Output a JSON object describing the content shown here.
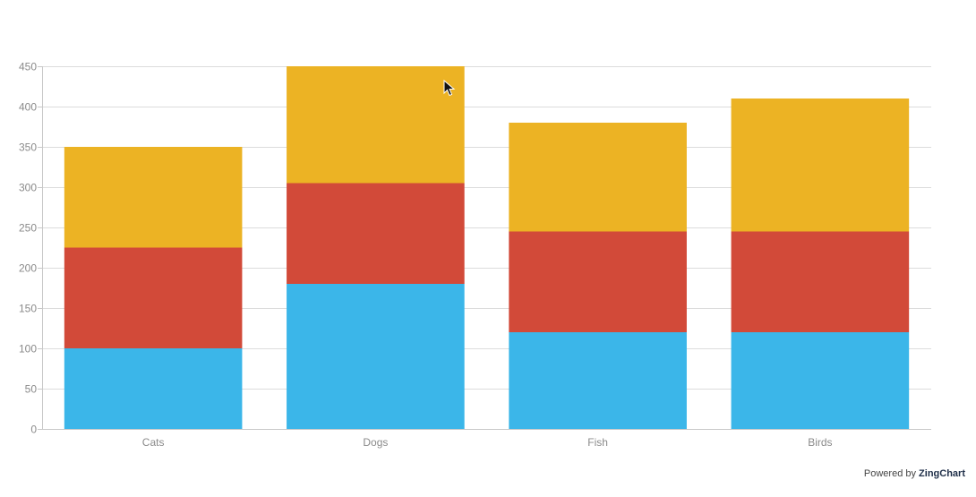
{
  "chart_data": {
    "type": "bar",
    "stacked": true,
    "categories": [
      "Cats",
      "Dogs",
      "Fish",
      "Birds"
    ],
    "series": [
      {
        "values": [
          100,
          180,
          120,
          120
        ],
        "color": "#3bb6e9"
      },
      {
        "values": [
          125,
          125,
          125,
          125
        ],
        "color": "#d24a39"
      },
      {
        "values": [
          125,
          145,
          135,
          165
        ],
        "color": "#ecb324"
      }
    ],
    "ylim": [
      0,
      450
    ],
    "yticks": [
      0,
      50,
      100,
      150,
      200,
      250,
      300,
      350,
      400,
      450
    ],
    "grid": true
  },
  "credit": {
    "prefix": "Powered by",
    "brand": "ZingChart"
  }
}
